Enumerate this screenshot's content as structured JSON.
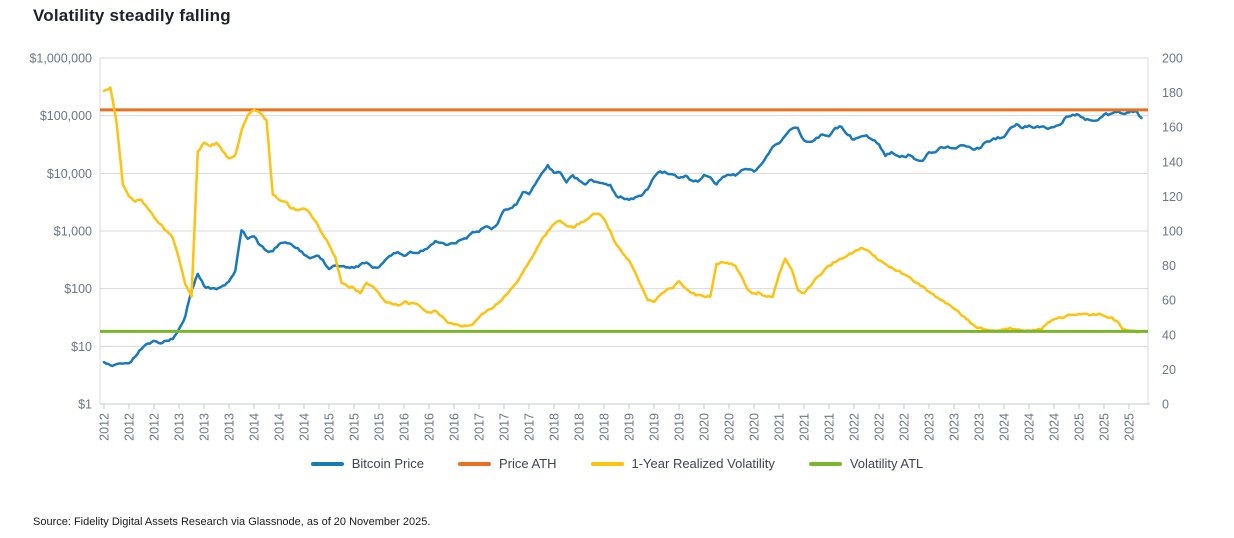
{
  "title": "Volatility steadily falling",
  "source": "Source: Fidelity Digital Assets Research via Glassnode, as of 20 November 2025.",
  "colors": {
    "grid": "#d9d9d9",
    "axis_line": "#c3c9d1",
    "axis_text": "#6c7689",
    "title_text": "#1d212b",
    "legend_text": "#3f4450",
    "source_text": "#1a1a1a"
  },
  "chart_data": {
    "type": "line",
    "title": "Volatility steadily falling",
    "x_start": "2012-01",
    "x_end": "2025-11",
    "x_frequency": "monthly",
    "x_tick_month_step": 4,
    "x_tick_labels": [
      "2012",
      "2012",
      "2012",
      "2013",
      "2013",
      "2013",
      "2014",
      "2014",
      "2014",
      "2015",
      "2015",
      "2015",
      "2016",
      "2016",
      "2016",
      "2017",
      "2017",
      "2017",
      "2018",
      "2018",
      "2018",
      "2019",
      "2019",
      "2019",
      "2020",
      "2020",
      "2020",
      "2021",
      "2021",
      "2021",
      "2022",
      "2022",
      "2022",
      "2023",
      "2023",
      "2023",
      "2024",
      "2024",
      "2024",
      "2025",
      "2025",
      "2025"
    ],
    "left_axis": {
      "scale": "log",
      "range": [
        1,
        1000000
      ],
      "tick_values": [
        1,
        10,
        100,
        1000,
        10000,
        100000,
        1000000
      ],
      "tick_labels": [
        "$1",
        "$10",
        "$100",
        "$1,000",
        "$10,000",
        "$100,000",
        "$1,000,000"
      ],
      "grid": true
    },
    "right_axis": {
      "scale": "linear",
      "min": 0,
      "max": 200,
      "tick_step": 20,
      "tick_labels": [
        "0",
        "20",
        "40",
        "60",
        "80",
        "100",
        "120",
        "140",
        "160",
        "180",
        "200"
      ],
      "grid": false
    },
    "series": [
      {
        "name": "Bitcoin Price",
        "color": "#1879bd",
        "axis": "left",
        "type": "line",
        "values": [
          5.3,
          4.7,
          4.9,
          5.0,
          5.1,
          6.6,
          9.0,
          11.2,
          12.4,
          11.2,
          12.5,
          13.4,
          20,
          33,
          93,
          180,
          112,
          100,
          98,
          113,
          133,
          204,
          1030,
          732,
          805,
          565,
          455,
          445,
          590,
          635,
          585,
          505,
          388,
          338,
          375,
          318,
          218,
          252,
          244,
          236,
          230,
          262,
          284,
          230,
          236,
          314,
          377,
          430,
          370,
          437,
          416,
          448,
          531,
          670,
          624,
          575,
          609,
          700,
          742,
          962,
          965,
          1190,
          1080,
          1350,
          2300,
          2480,
          2880,
          4700,
          4340,
          6470,
          9900,
          13900,
          10200,
          10300,
          6970,
          9240,
          7500,
          6400,
          7750,
          7030,
          6600,
          6300,
          4020,
          3740,
          3460,
          3850,
          4100,
          5320,
          8560,
          10820,
          10080,
          9590,
          8300,
          9150,
          7550,
          7200,
          9350,
          8550,
          6440,
          8650,
          9450,
          9140,
          11350,
          11650,
          10780,
          13800,
          19700,
          29000,
          33100,
          45140,
          58800,
          61000,
          37330,
          35040,
          41500,
          47110,
          43790,
          61320,
          64000,
          46200,
          38480,
          43190,
          45540,
          37650,
          31790,
          19940,
          23300,
          20050,
          19430,
          20490,
          17160,
          16540,
          23140,
          23150,
          28480,
          29250,
          27220,
          30480,
          29230,
          25930,
          26960,
          34650,
          37710,
          42260,
          42580,
          61200,
          71300,
          60640,
          67500,
          62680,
          64620,
          58970,
          63330,
          70220,
          96450,
          104000,
          102090,
          84350,
          82550,
          83000,
          104640,
          107140,
          115760,
          108240,
          114050,
          121000,
          91000
        ]
      },
      {
        "name": "Price ATH",
        "color": "#e8701f",
        "axis": "left",
        "type": "hline",
        "value": 126000
      },
      {
        "name": "1-Year Realized Volatility",
        "color": "#ffc20e",
        "axis": "right",
        "type": "line",
        "values": [
          181,
          183,
          163,
          127,
          120,
          117,
          118,
          113,
          108,
          104,
          100,
          96,
          84,
          69,
          62,
          146,
          151,
          149,
          151,
          146,
          142,
          144,
          158,
          167,
          170,
          168,
          164,
          121,
          118,
          117,
          113,
          112,
          113,
          110,
          105,
          98,
          92,
          85,
          70,
          68,
          67,
          64,
          70,
          68,
          64,
          59,
          58,
          57,
          59,
          58,
          58,
          55,
          53,
          54,
          51,
          47,
          46,
          45,
          45,
          46,
          50,
          53,
          55,
          58,
          62,
          66,
          70,
          76,
          82,
          88,
          95,
          100,
          104,
          106,
          103,
          102,
          104,
          106,
          109,
          110,
          107,
          100,
          92,
          87,
          83,
          76,
          68,
          60,
          59,
          63,
          66,
          67,
          71,
          67,
          64,
          63,
          62,
          62,
          81,
          82,
          81,
          80,
          74,
          66,
          64,
          64,
          62,
          62,
          75,
          84,
          78,
          66,
          64,
          68,
          73,
          76,
          80,
          82,
          84,
          86,
          88,
          90,
          89,
          86,
          83,
          81,
          79,
          77,
          75,
          73,
          70,
          68,
          65,
          62,
          60,
          58,
          55,
          52,
          49,
          46,
          44,
          43,
          42.5,
          42.5,
          43,
          44,
          43,
          42.5,
          42.5,
          42.5,
          43,
          47,
          49,
          50,
          51,
          51.5,
          52,
          52,
          51.5,
          52,
          51,
          50,
          48,
          43,
          42.5,
          42,
          42
        ]
      },
      {
        "name": "Volatility ATL",
        "color": "#7ab629",
        "axis": "right",
        "type": "hline",
        "value": 42
      }
    ],
    "legend_position": "bottom"
  }
}
